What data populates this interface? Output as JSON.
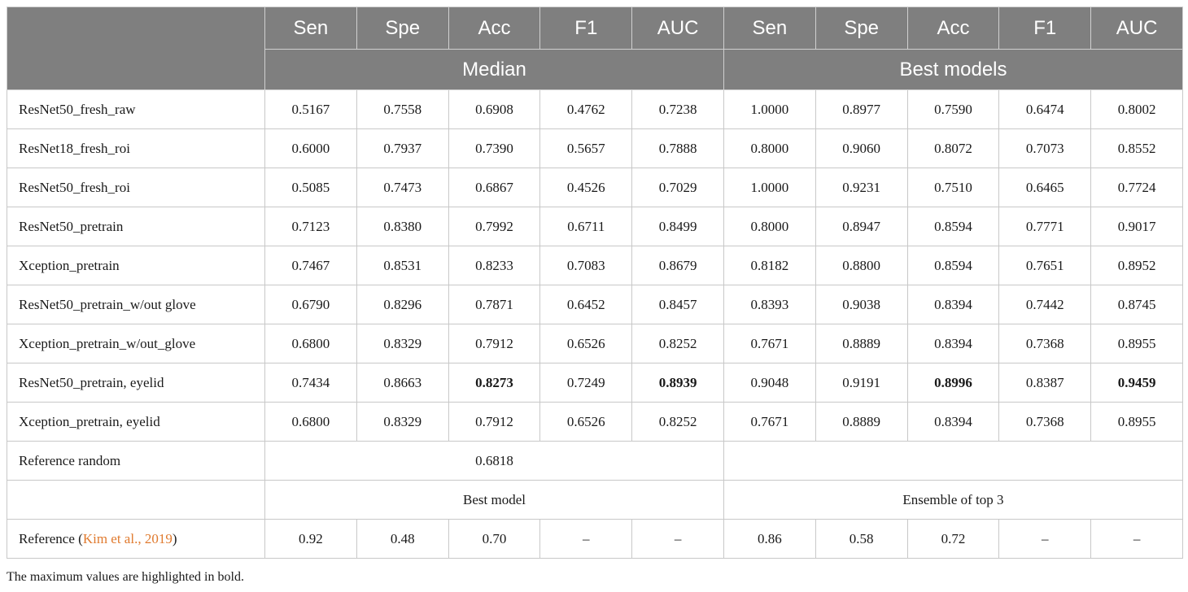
{
  "header": {
    "metrics_left": [
      "Sen",
      "Spe",
      "Acc",
      "F1",
      "AUC"
    ],
    "metrics_right": [
      "Sen",
      "Spe",
      "Acc",
      "F1",
      "AUC"
    ],
    "group_left": "Median",
    "group_right": "Best models"
  },
  "rows": [
    {
      "label": "ResNet50_fresh_raw",
      "values": [
        "0.5167",
        "0.7558",
        "0.6908",
        "0.4762",
        "0.7238",
        "1.0000",
        "0.8977",
        "0.7590",
        "0.6474",
        "0.8002"
      ]
    },
    {
      "label": "ResNet18_fresh_roi",
      "values": [
        "0.6000",
        "0.7937",
        "0.7390",
        "0.5657",
        "0.7888",
        "0.8000",
        "0.9060",
        "0.8072",
        "0.7073",
        "0.8552"
      ]
    },
    {
      "label": "ResNet50_fresh_roi",
      "values": [
        "0.5085",
        "0.7473",
        "0.6867",
        "0.4526",
        "0.7029",
        "1.0000",
        "0.9231",
        "0.7510",
        "0.6465",
        "0.7724"
      ]
    },
    {
      "label": "ResNet50_pretrain",
      "values": [
        "0.7123",
        "0.8380",
        "0.7992",
        "0.6711",
        "0.8499",
        "0.8000",
        "0.8947",
        "0.8594",
        "0.7771",
        "0.9017"
      ]
    },
    {
      "label": "Xception_pretrain",
      "values": [
        "0.7467",
        "0.8531",
        "0.8233",
        "0.7083",
        "0.8679",
        "0.8182",
        "0.8800",
        "0.8594",
        "0.7651",
        "0.8952"
      ]
    },
    {
      "label": "ResNet50_pretrain_w/out glove",
      "values": [
        "0.6790",
        "0.8296",
        "0.7871",
        "0.6452",
        "0.8457",
        "0.8393",
        "0.9038",
        "0.8394",
        "0.7442",
        "0.8745"
      ]
    },
    {
      "label": "Xception_pretrain_w/out_glove",
      "values": [
        "0.6800",
        "0.8329",
        "0.7912",
        "0.6526",
        "0.8252",
        "0.7671",
        "0.8889",
        "0.8394",
        "0.7368",
        "0.8955"
      ]
    },
    {
      "label": "ResNet50_pretrain, eyelid",
      "values": [
        "0.7434",
        "0.8663",
        "0.8273",
        "0.7249",
        "0.8939",
        "0.9048",
        "0.9191",
        "0.8996",
        "0.8387",
        "0.9459"
      ]
    },
    {
      "label": "Xception_pretrain, eyelid",
      "values": [
        "0.6800",
        "0.8329",
        "0.7912",
        "0.6526",
        "0.8252",
        "0.7671",
        "0.8889",
        "0.8394",
        "0.7368",
        "0.8955"
      ]
    }
  ],
  "reference_random": {
    "label": "Reference random",
    "value": "0.6818",
    "right": ""
  },
  "subheader": {
    "left": "Best model",
    "right": "Ensemble of top 3"
  },
  "reference_kim": {
    "label_prefix": "Reference (",
    "citation": "Kim et al., 2019",
    "label_suffix": ")",
    "values": [
      "0.92",
      "0.48",
      "0.70",
      "–",
      "–",
      "0.86",
      "0.58",
      "0.72",
      "–",
      "–"
    ]
  },
  "footnote": "The maximum values are highlighted in bold."
}
